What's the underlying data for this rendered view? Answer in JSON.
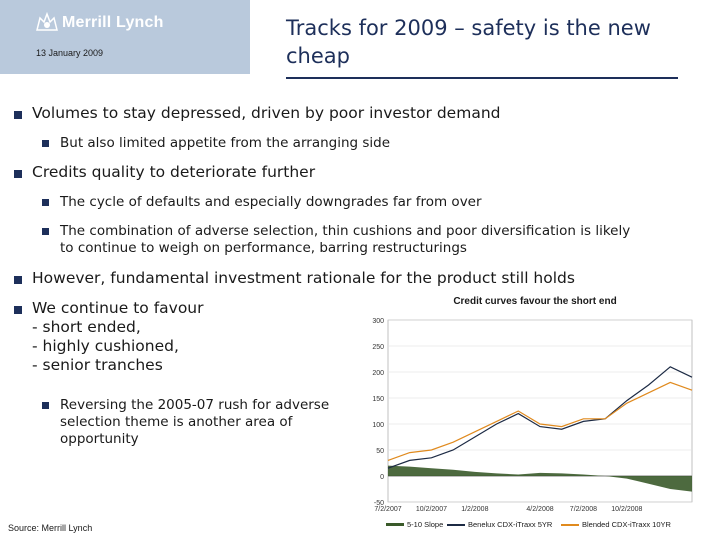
{
  "header": {
    "logo_text": "Merrill Lynch",
    "date": "13 January 2009",
    "title": "Tracks for 2009 – safety is the new cheap"
  },
  "bullets": [
    {
      "text": "Volumes to stay depressed, driven by poor investor demand"
    },
    {
      "text": "But also limited appetite from the arranging side"
    },
    {
      "text": "Credits quality to deteriorate further"
    },
    {
      "text": "The cycle of defaults and especially downgrades far from over"
    },
    {
      "text": "The combination of adverse selection, thin cushions and poor diversification is likely to continue to weigh on performance, barring restructurings"
    },
    {
      "text": "However, fundamental investment rationale for the product still holds"
    },
    {
      "text": "We continue to favour\n- short ended,\n- highly cushioned,\n- senior tranches"
    },
    {
      "text": "Reversing the 2005-07 rush for adverse selection theme is another area of opportunity"
    }
  ],
  "source": "Source: Merrill Lynch",
  "colors": {
    "brand_blue": "#1d2f5a",
    "logo_bg": "#b9c9dc",
    "slope": "#3a5a2a",
    "itraxx": "#1c2a44",
    "blended": "#e08a1e"
  },
  "chart_data": {
    "type": "line",
    "title": "Credit curves favour the short end",
    "ylim": [
      -50,
      300
    ],
    "yticks": [
      "300",
      "250",
      "200",
      "150",
      "100",
      "50",
      "0",
      "-50"
    ],
    "xticks": [
      "7/2/2007",
      "10/2/2007",
      "1/2/2008",
      "4/2/2008",
      "7/2/2008",
      "10/2/2008"
    ],
    "x": [
      "7/2/2007",
      "8/15/2007",
      "10/2/2007",
      "11/15/2007",
      "1/2/2008",
      "2/15/2008",
      "3/15/2008",
      "4/2/2008",
      "5/15/2008",
      "7/2/2008",
      "8/15/2008",
      "10/2/2008",
      "11/15/2008",
      "12/15/2008",
      "1/5/2009"
    ],
    "series": [
      {
        "name": "5-10 Slope",
        "type": "area",
        "values": [
          20,
          18,
          15,
          12,
          8,
          5,
          3,
          6,
          5,
          3,
          0,
          -5,
          -15,
          -25,
          -30
        ]
      },
      {
        "name": "Benelux CDX-iTraxx 5YR",
        "values": [
          15,
          30,
          35,
          50,
          75,
          100,
          120,
          95,
          90,
          105,
          110,
          145,
          175,
          210,
          190
        ]
      },
      {
        "name": "Blended CDX-iTraxx 10YR",
        "values": [
          30,
          45,
          50,
          65,
          85,
          105,
          125,
          100,
          95,
          110,
          110,
          140,
          160,
          180,
          165
        ]
      }
    ],
    "legend_position": "bottom"
  }
}
